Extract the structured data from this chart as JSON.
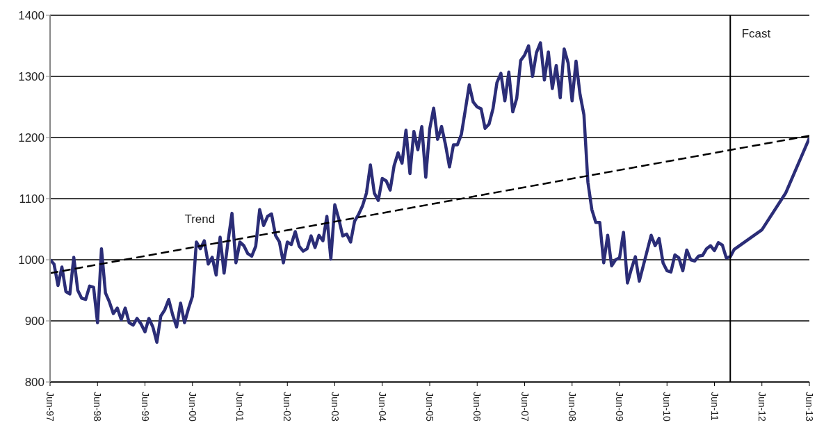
{
  "chart_data": {
    "type": "line",
    "xlim": [
      "1997-06",
      "2013-06"
    ],
    "xticks": [
      {
        "value": "1997-06",
        "label": "Jun-97"
      },
      {
        "value": "1998-06",
        "label": "Jun-98"
      },
      {
        "value": "1999-06",
        "label": "Jun-99"
      },
      {
        "value": "2000-06",
        "label": "Jun-00"
      },
      {
        "value": "2001-06",
        "label": "Jun-01"
      },
      {
        "value": "2002-06",
        "label": "Jun-02"
      },
      {
        "value": "2003-06",
        "label": "Jun-03"
      },
      {
        "value": "2004-06",
        "label": "Jun-04"
      },
      {
        "value": "2005-06",
        "label": "Jun-05"
      },
      {
        "value": "2006-06",
        "label": "Jun-06"
      },
      {
        "value": "2007-06",
        "label": "Jun-07"
      },
      {
        "value": "2008-06",
        "label": "Jun-08"
      },
      {
        "value": "2009-06",
        "label": "Jun-09"
      },
      {
        "value": "2010-06",
        "label": "Jun-10"
      },
      {
        "value": "2011-06",
        "label": "Jun-11"
      },
      {
        "value": "2012-06",
        "label": "Jun-12"
      },
      {
        "value": "2013-06",
        "label": "Jun-13"
      }
    ],
    "ylim": [
      800,
      1400
    ],
    "yticks": [
      800,
      900,
      1000,
      1100,
      1200,
      1300,
      1400
    ],
    "grid": "y",
    "ref_lines": [
      {
        "axis": "x",
        "value": "2011-10",
        "label": "Fcast",
        "color": "#000000"
      }
    ],
    "series": [
      {
        "color": "#2b2d77",
        "x": [
          "1997-06",
          "1997-07",
          "1997-08",
          "1997-09",
          "1997-10",
          "1997-11",
          "1997-12",
          "1998-01",
          "1998-02",
          "1998-03",
          "1998-04",
          "1998-05",
          "1998-06",
          "1998-07",
          "1998-08",
          "1998-09",
          "1998-10",
          "1998-11",
          "1998-12",
          "1999-01",
          "1999-02",
          "1999-03",
          "1999-04",
          "1999-05",
          "1999-06",
          "1999-07",
          "1999-08",
          "1999-09",
          "1999-10",
          "1999-11",
          "1999-12",
          "2000-01",
          "2000-02",
          "2000-03",
          "2000-04",
          "2000-05",
          "2000-06",
          "2000-07",
          "2000-08",
          "2000-09",
          "2000-10",
          "2000-11",
          "2000-12",
          "2001-01",
          "2001-02",
          "2001-03",
          "2001-04",
          "2001-05",
          "2001-06",
          "2001-07",
          "2001-08",
          "2001-09",
          "2001-10",
          "2001-11",
          "2001-12",
          "2002-01",
          "2002-02",
          "2002-03",
          "2002-04",
          "2002-05",
          "2002-06",
          "2002-07",
          "2002-08",
          "2002-09",
          "2002-10",
          "2002-11",
          "2002-12",
          "2003-01",
          "2003-02",
          "2003-03",
          "2003-04",
          "2003-05",
          "2003-06",
          "2003-07",
          "2003-08",
          "2003-09",
          "2003-10",
          "2003-11",
          "2003-12",
          "2004-01",
          "2004-02",
          "2004-03",
          "2004-04",
          "2004-05",
          "2004-06",
          "2004-07",
          "2004-08",
          "2004-09",
          "2004-10",
          "2004-11",
          "2004-12",
          "2005-01",
          "2005-02",
          "2005-03",
          "2005-04",
          "2005-05",
          "2005-06",
          "2005-07",
          "2005-08",
          "2005-09",
          "2005-10",
          "2005-11",
          "2005-12",
          "2006-01",
          "2006-02",
          "2006-03",
          "2006-04",
          "2006-05",
          "2006-06",
          "2006-07",
          "2006-08",
          "2006-09",
          "2006-10",
          "2006-11",
          "2006-12",
          "2007-01",
          "2007-02",
          "2007-03",
          "2007-04",
          "2007-05",
          "2007-06",
          "2007-07",
          "2007-08",
          "2007-09",
          "2007-10",
          "2007-11",
          "2007-12",
          "2008-01",
          "2008-02",
          "2008-03",
          "2008-04",
          "2008-05",
          "2008-06",
          "2008-07",
          "2008-08",
          "2008-09",
          "2008-10",
          "2008-11",
          "2008-12",
          "2009-01",
          "2009-02",
          "2009-03",
          "2009-04",
          "2009-05",
          "2009-06",
          "2009-07",
          "2009-08",
          "2009-09",
          "2009-10",
          "2009-11",
          "2009-12",
          "2010-01",
          "2010-02",
          "2010-03",
          "2010-04",
          "2010-05",
          "2010-06",
          "2010-07",
          "2010-08",
          "2010-09",
          "2010-10",
          "2010-11",
          "2010-12",
          "2011-01",
          "2011-02",
          "2011-03",
          "2011-04",
          "2011-05",
          "2011-06",
          "2011-07",
          "2011-08",
          "2011-09",
          "2011-10",
          "2011-11",
          "2012-06",
          "2012-12",
          "2013-06"
        ],
        "values": [
          1000,
          993,
          958,
          988,
          948,
          944,
          1004,
          950,
          937,
          935,
          957,
          955,
          897,
          1018,
          946,
          931,
          912,
          921,
          902,
          921,
          897,
          893,
          904,
          895,
          882,
          904,
          890,
          865,
          908,
          918,
          935,
          910,
          890,
          929,
          897,
          920,
          940,
          1029,
          1018,
          1031,
          993,
          1004,
          975,
          1037,
          978,
          1030,
          1076,
          995,
          1029,
          1023,
          1010,
          1006,
          1022,
          1082,
          1056,
          1071,
          1075,
          1040,
          1029,
          995,
          1029,
          1025,
          1046,
          1022,
          1014,
          1018,
          1039,
          1020,
          1040,
          1031,
          1071,
          1001,
          1090,
          1067,
          1039,
          1042,
          1029,
          1063,
          1074,
          1088,
          1109,
          1155,
          1109,
          1097,
          1133,
          1129,
          1114,
          1154,
          1175,
          1158,
          1212,
          1141,
          1210,
          1180,
          1218,
          1135,
          1214,
          1248,
          1197,
          1218,
          1188,
          1152,
          1188,
          1188,
          1205,
          1245,
          1286,
          1258,
          1250,
          1247,
          1215,
          1222,
          1247,
          1290,
          1305,
          1260,
          1307,
          1242,
          1264,
          1326,
          1335,
          1350,
          1300,
          1339,
          1355,
          1294,
          1340,
          1280,
          1318,
          1265,
          1345,
          1322,
          1260,
          1325,
          1271,
          1237,
          1127,
          1082,
          1061,
          1061,
          995,
          1040,
          990,
          1000,
          1003,
          1045,
          962,
          985,
          1005,
          965,
          990,
          1015,
          1040,
          1023,
          1035,
          995,
          982,
          980,
          1008,
          1003,
          982,
          1016,
          1000,
          998,
          1006,
          1007,
          1018,
          1023,
          1015,
          1028,
          1024,
          1003,
          1005,
          1017,
          1049,
          1109,
          1199
        ]
      },
      {
        "name": "Trend",
        "color": "#000000",
        "line_style": "dashed",
        "x": [
          "1997-06",
          "2013-06"
        ],
        "values": [
          978,
          1203
        ]
      }
    ]
  }
}
